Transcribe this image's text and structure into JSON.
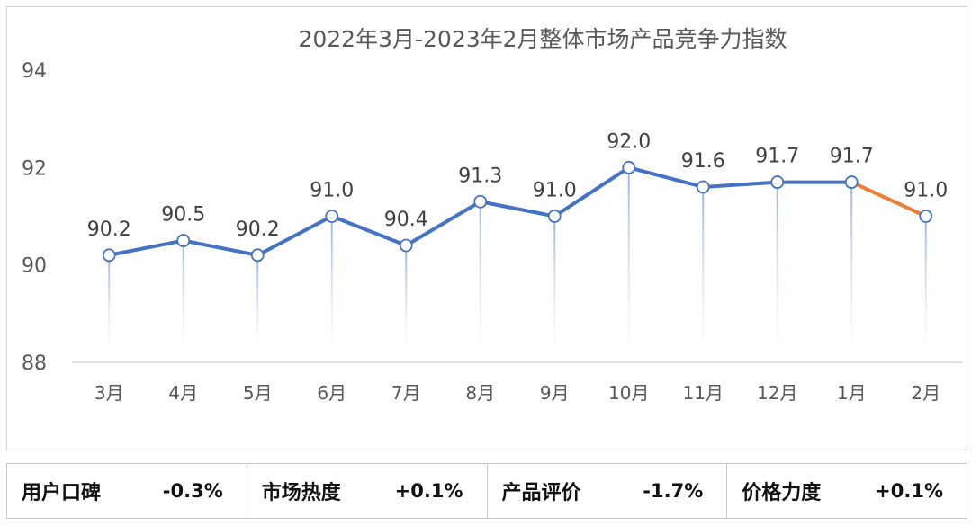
{
  "chart_data": {
    "type": "line",
    "title": "2022年3月-2023年2月整体市场产品竞争力指数",
    "categories": [
      "3月",
      "4月",
      "5月",
      "6月",
      "7月",
      "8月",
      "9月",
      "10月",
      "11月",
      "12月",
      "1月",
      "2月"
    ],
    "values": [
      90.2,
      90.5,
      90.2,
      91.0,
      90.4,
      91.3,
      91.0,
      92.0,
      91.6,
      91.7,
      91.7,
      91.0
    ],
    "value_labels": [
      "90.2",
      "90.5",
      "90.2",
      "91.0",
      "90.4",
      "91.3",
      "91.0",
      "92.0",
      "91.6",
      "91.7",
      "91.7",
      "91.0"
    ],
    "ylim": [
      88,
      94
    ],
    "yticks": [
      "88",
      "90",
      "92",
      "94"
    ],
    "grid": false,
    "colors": {
      "line": "#4472C4",
      "highlight": "#ED7D31",
      "marker_fill": "#ffffff"
    }
  },
  "summary": [
    {
      "label": "用户口碑",
      "value": "-0.3%"
    },
    {
      "label": "市场热度",
      "value": "+0.1%"
    },
    {
      "label": "产品评价",
      "value": "-1.7%"
    },
    {
      "label": "价格力度",
      "value": "+0.1%"
    }
  ]
}
